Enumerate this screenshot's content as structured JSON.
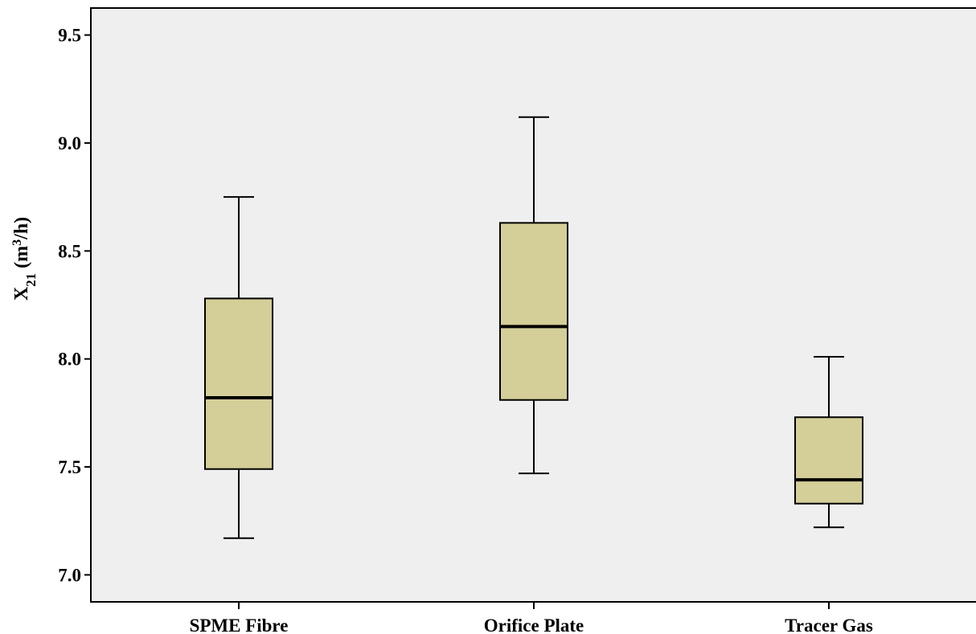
{
  "chart_data": {
    "type": "boxplot",
    "title": "",
    "xlabel": "",
    "ylabel": {
      "base": "X",
      "subscript": "21",
      "unit_open": " (m",
      "unit_sup": "3",
      "unit_close": "/h)"
    },
    "ylim": [
      6.875,
      9.625
    ],
    "yticks": [
      "7.0",
      "7.5",
      "8.0",
      "8.5",
      "9.0",
      "9.5"
    ],
    "grid": false,
    "legend": "none",
    "categories": [
      "SPME Fibre",
      "Orifice Plate",
      "Tracer Gas"
    ],
    "boxes": [
      {
        "category": "SPME Fibre",
        "whisker_low": 7.17,
        "q1": 7.49,
        "median": 7.82,
        "q3": 8.28,
        "whisker_high": 8.75
      },
      {
        "category": "Orifice Plate",
        "whisker_low": 7.47,
        "q1": 7.81,
        "median": 8.15,
        "q3": 8.63,
        "whisker_high": 9.12
      },
      {
        "category": "Tracer Gas",
        "whisker_low": 7.22,
        "q1": 7.33,
        "median": 7.44,
        "q3": 7.73,
        "whisker_high": 8.01
      }
    ],
    "colors": {
      "plot_background": "#efefef",
      "box_fill": "#d4ce98",
      "stroke": "#000000"
    }
  }
}
